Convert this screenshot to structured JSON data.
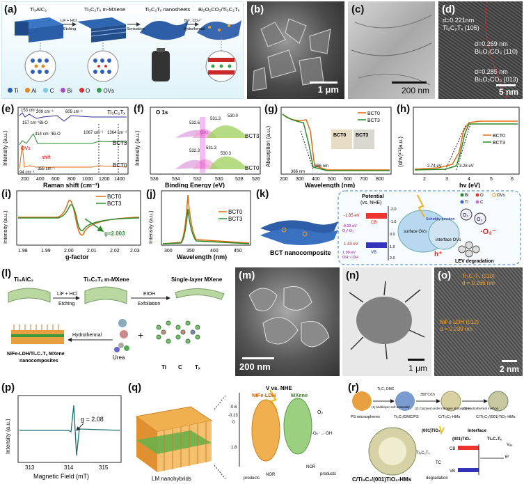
{
  "panels": {
    "a": {
      "label": "(a)",
      "stage1": "Ti₃AlC₂",
      "stage2": "Ti₃C₂Tₓ m-MXene",
      "stage3": "Ti₃C₂Tₓ nanosheets",
      "stage4": "Bi₂O₂CO₃/Ti₃C₂Tₓ",
      "arrow1_top": "LiF + HCl",
      "arrow1_bot": "Etching",
      "arrow2_bot": "Sonication",
      "arrow3_top": "Bi³⁺, CO₃²⁻",
      "arrow3_bot": "Hydrothermal",
      "legend": [
        "Ti",
        "Al",
        "C",
        "Bi",
        "O",
        "OVs"
      ],
      "legend_colors": [
        "#2d5fb8",
        "#e38a1c",
        "#7ec8e8",
        "#b04dc6",
        "#e03030",
        "#36a048"
      ]
    },
    "b": {
      "label": "(b)",
      "scale": "1 μm"
    },
    "c": {
      "label": "(c)",
      "scale": "200 nm"
    },
    "d": {
      "label": "(d)",
      "t1": "d=0.221nm",
      "t2": "Ti₃C₂Tₓ (105)",
      "t3": "d=0.269 nm",
      "t4": "Bi₂O₂CO₃ (110)",
      "t5": "d=0.285 nm",
      "t6": "Bi₂O₂CO₃ (013)",
      "scale": "5 nm"
    },
    "e": {
      "label": "(e)",
      "ylabel": "Intensity (a.u.)",
      "xlabel": "Raman shift (cm⁻¹)",
      "ticks": [
        "200",
        "400",
        "600",
        "800",
        "1000",
        "1200",
        "1400"
      ],
      "s1": "Ti₃C₂Tₓ",
      "s2": "BCT3",
      "s3": "BCT0",
      "a1": "153 cm⁻¹",
      "a2": "209 cm⁻¹",
      "a3": "605 cm⁻¹",
      "a4": "157 cm⁻¹Bi-O",
      "a5": "314 cm⁻¹Bi-O",
      "a6": "1067 cm⁻¹",
      "a7": "1364 cm⁻¹",
      "a8": "OVs",
      "a9": "shift",
      "a10": "355 cm⁻¹",
      "a11": "94 cm⁻¹"
    },
    "f": {
      "label": "(f)",
      "title": "O 1s",
      "ylabel": "Intensity (a.u.)",
      "xlabel": "Binding Energy (eV)",
      "ticks": [
        "536",
        "534",
        "532",
        "530",
        "528",
        "526"
      ],
      "p1": "532.6",
      "p2": "531.3",
      "p3": "530.0",
      "p4": "532.3",
      "p5": "531.3",
      "p6": "530.3",
      "ovs": "OVs",
      "s1": "BCT3",
      "s2": "BCT0"
    },
    "g": {
      "label": "(g)",
      "ylabel": "Absorption (a.u.)",
      "xlabel": "Wavelength (nm)",
      "ticks": [
        "200",
        "300",
        "400",
        "500",
        "600",
        "700",
        "800"
      ],
      "leg1": "BCT0",
      "leg2": "BCT3",
      "a1": "366 nm",
      "a2": "386 nm",
      "photo1": "BCT0",
      "photo2": "BCT3"
    },
    "h": {
      "label": "(h)",
      "ylabel": "(αhv)¹′²(a.u.)",
      "xlabel": "hv (eV)",
      "ticks": [
        "2",
        "3",
        "4",
        "5",
        "6"
      ],
      "leg1": "BCT0",
      "leg2": "BCT3",
      "a1": "2.74 eV",
      "a2": "3.28 eV"
    },
    "i": {
      "label": "(i)",
      "ylabel": "Intensity (a.u.)",
      "xlabel": "g-factor",
      "ticks": [
        "1.98",
        "1.99",
        "2.00",
        "2.01",
        "2.02",
        "2.03"
      ],
      "leg1": "BCT0",
      "leg2": "BCT3",
      "g": "g=2.003"
    },
    "j": {
      "label": "(j)",
      "ylabel": "Intensity (a.u.)",
      "xlabel": "Wavelength (nm)",
      "ticks": [
        "300",
        "350",
        "400",
        "450"
      ],
      "leg1": "BCT0",
      "leg2": "BCT3"
    },
    "k": {
      "label": "(k)",
      "left": "BCT nanocomposite",
      "potential": "Potential",
      "vs": "(vs. NHE)",
      "cb": "-1.85 eV",
      "cb2": "CB",
      "o2": "-0.33 eV",
      "o2b": "O₂/·O₂⁻",
      "vb": "1.43 eV",
      "vb2": "VB",
      "oh": "1.99 eV",
      "oh2": "OH⁻/·OH",
      "schottky": "Schottky junction",
      "surf": "surface OVs",
      "inter": "interface OVs",
      "deg": "LEV degradation",
      "ticks": [
        "-2.0",
        "-1.0",
        "0.0",
        "1.0",
        "2.0"
      ],
      "legend": [
        "Bi",
        "O",
        "OVs",
        "Ti",
        "C"
      ]
    },
    "l": {
      "label": "(l)",
      "t1": "Ti₃AlC₂",
      "t2": "Ti₃C₂Tₓ m-MXene",
      "t3": "Single-layer MXene",
      "r1": "LiF + HCl",
      "r1b": "Etching",
      "r2": "EtOH",
      "r2b": "Exfoliation",
      "hydro": "Hydrothermal",
      "urea": "Urea",
      "prod1": "NiFe-LDH/Ti₃C₂Tₓ MXene",
      "prod2": "nanocomposites",
      "atoms": [
        "Ti",
        "C",
        "Tₓ"
      ]
    },
    "m": {
      "label": "(m)",
      "scale": "200 nm"
    },
    "n": {
      "label": "(n)",
      "scale": "1 μm"
    },
    "o": {
      "label": "(o)",
      "t1": "Ti₃C₂Tₓ (010)",
      "t2": "d = 0.266 nm",
      "t3": "NiFe LDH (012)",
      "t4": "d = 0.230 nm",
      "scale": "2 nm"
    },
    "p": {
      "label": "(p)",
      "ylabel": "Intensity (a.u.)",
      "xlabel": "Magnetic Field (mT)",
      "ticks": [
        "313",
        "314",
        "315"
      ],
      "g": "g = 2.08"
    },
    "q": {
      "label": "(q)",
      "vs": "V vs. NHE",
      "ldh": "NiFe-LDH",
      "mx": "MXene",
      "nano": "LM nanohybrids",
      "levels": [
        "-0.6",
        "-0.13",
        "0",
        "1.8"
      ],
      "o2": "O₂",
      "o2r": "·O₂⁻→·OH",
      "nor1": "NOR",
      "prod1": "products",
      "nor2": "NOR",
      "prod2": "products"
    },
    "r": {
      "label": "(r)",
      "ps": "PS microspheres",
      "s2": "Ti₃C₂/DMC/PS",
      "s3": "C/Ti₃C₂-HMs",
      "s4": "C/Ti₃C₂/(001)TiO₂-HMs",
      "step1": "(1) Multilayer self-assembly",
      "step2": "(2) Calcined under nitrogen atmosphere",
      "step3": "(3) Hydrothermal method",
      "cond": "350°C/1h",
      "dmc": "Ti₃C₂ DMC",
      "tio2": "(001)TiO₂",
      "interface": "Interface",
      "tio2b": "(001)TiO₂",
      "tic": "Ti₃C₂Tₓ",
      "ti3c2": "Ti₃C₂Tₓ",
      "vac": "Vₐₑ",
      "ef": "Eᶠ",
      "cb": "CB",
      "vb": "VB",
      "tc": "TC",
      "deg": "degradation",
      "main": "C/Ti₃C₂/(001)TiO₂-HMs"
    }
  }
}
